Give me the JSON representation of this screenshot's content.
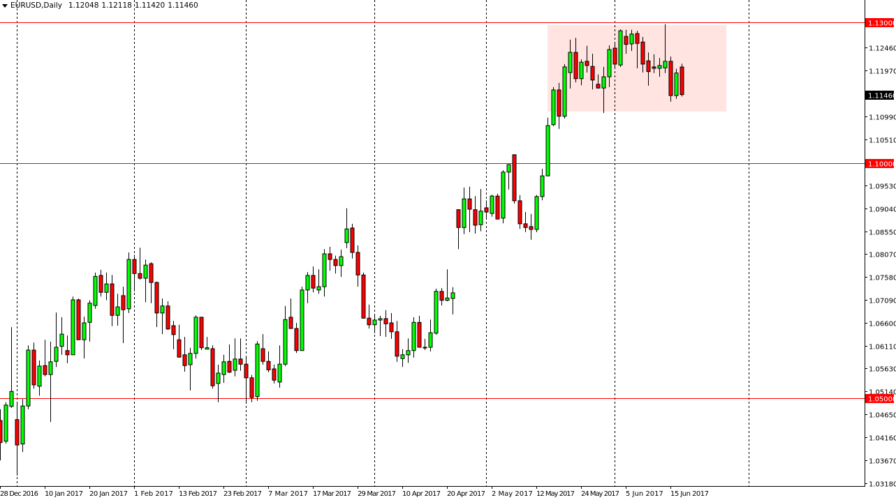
{
  "header": {
    "symbol_timeframe": "EURUSD,Daily",
    "open": "1.12048",
    "high": "1.12118",
    "low": "1.11420",
    "close": "1.11460"
  },
  "colors": {
    "background": "#ffffff",
    "bull_body": "#00ff00",
    "bear_body": "#ff0000",
    "wick": "#000000",
    "level_line": "#ff0000",
    "zone_fill": "#ffe4e1",
    "current_price_label": "#000000"
  },
  "chart_data": {
    "type": "candlestick",
    "title": "EURUSD,Daily",
    "grid": false,
    "ylim": [
      1.03125,
      1.13475
    ],
    "y_ticks": [
      "1.12460",
      "1.11970",
      "1.10990",
      "1.10510",
      "1.09530",
      "1.09040",
      "1.08550",
      "1.08070",
      "1.07580",
      "1.07090",
      "1.06600",
      "1.06110",
      "1.05630",
      "1.05140",
      "1.04650",
      "1.04160",
      "1.03670",
      "1.03180"
    ],
    "x_labels": [
      {
        "bar": 0,
        "label": "28 Dec 2016"
      },
      {
        "bar": 8,
        "label": "10 Jan 2017"
      },
      {
        "bar": 16,
        "label": "20 Jan 2017"
      },
      {
        "bar": 24,
        "label": "1 Feb 2017"
      },
      {
        "bar": 32,
        "label": "13 Feb 2017"
      },
      {
        "bar": 40,
        "label": "23 Feb 2017"
      },
      {
        "bar": 48,
        "label": "7 Mar 2017"
      },
      {
        "bar": 56,
        "label": "17 Mar 2017"
      },
      {
        "bar": 64,
        "label": "29 Mar 2017"
      },
      {
        "bar": 72,
        "label": "10 Apr 2017"
      },
      {
        "bar": 80,
        "label": "20 Apr 2017"
      },
      {
        "bar": 88,
        "label": "2 May 2017"
      },
      {
        "bar": 96,
        "label": "12 May 2017"
      },
      {
        "bar": 104,
        "label": "24 May 2017"
      },
      {
        "bar": 112,
        "label": "5 Jun 2017"
      },
      {
        "bar": 120,
        "label": "15 Jun 2017"
      }
    ],
    "ohlc_fields": [
      "open",
      "high",
      "low",
      "close"
    ],
    "candles": [
      [
        1.0452,
        1.0476,
        1.0367,
        1.0405
      ],
      [
        1.0408,
        1.0491,
        1.0403,
        1.0485
      ],
      [
        1.0482,
        1.0651,
        1.0479,
        1.0514
      ],
      [
        1.0454,
        1.0491,
        1.0335,
        1.04
      ],
      [
        1.0402,
        1.0498,
        1.0385,
        1.0483
      ],
      [
        1.0483,
        1.0612,
        1.0476,
        1.0602
      ],
      [
        1.0602,
        1.0618,
        1.052,
        1.0528
      ],
      [
        1.0525,
        1.058,
        1.0505,
        1.0568
      ],
      [
        1.0569,
        1.0624,
        1.0546,
        1.055
      ],
      [
        1.055,
        1.062,
        1.0449,
        1.0577
      ],
      [
        1.0578,
        1.0682,
        1.0566,
        1.0608
      ],
      [
        1.061,
        1.0672,
        1.0592,
        1.0636
      ],
      [
        1.0601,
        1.0633,
        1.0574,
        1.0592
      ],
      [
        1.0592,
        1.0716,
        1.0592,
        1.0709
      ],
      [
        1.0709,
        1.0712,
        1.0624,
        1.0624
      ],
      [
        1.0624,
        1.0673,
        1.0584,
        1.066
      ],
      [
        1.0661,
        1.0708,
        1.062,
        1.0702
      ],
      [
        1.0697,
        1.0767,
        1.069,
        1.0759
      ],
      [
        1.0761,
        1.0773,
        1.0716,
        1.0725
      ],
      [
        1.0725,
        1.0767,
        1.0708,
        1.0743
      ],
      [
        1.0743,
        1.0762,
        1.0653,
        1.0676
      ],
      [
        1.0676,
        1.0722,
        1.0654,
        1.0694
      ],
      [
        1.0718,
        1.0737,
        1.0617,
        1.0688
      ],
      [
        1.069,
        1.081,
        1.0681,
        1.0795
      ],
      [
        1.0795,
        1.0805,
        1.0727,
        1.0765
      ],
      [
        1.0765,
        1.082,
        1.0752,
        1.0755
      ],
      [
        1.0755,
        1.0795,
        1.0704,
        1.0783
      ],
      [
        1.0786,
        1.0789,
        1.0702,
        1.0746
      ],
      [
        1.0746,
        1.0748,
        1.0651,
        1.0681
      ],
      [
        1.0681,
        1.0712,
        1.0636,
        1.0696
      ],
      [
        1.0696,
        1.0706,
        1.0645,
        1.0647
      ],
      [
        1.0654,
        1.0664,
        1.0604,
        1.0635
      ],
      [
        1.0624,
        1.0656,
        1.0586,
        1.0587
      ],
      [
        1.0592,
        1.063,
        1.0556,
        1.0569
      ],
      [
        1.0571,
        1.0607,
        1.0516,
        1.0595
      ],
      [
        1.0595,
        1.0676,
        1.0584,
        1.0672
      ],
      [
        1.0672,
        1.0673,
        1.0602,
        1.0607
      ],
      [
        1.0604,
        1.063,
        1.0604,
        1.0607
      ],
      [
        1.0605,
        1.0612,
        1.052,
        1.0526
      ],
      [
        1.0531,
        1.0571,
        1.0491,
        1.0553
      ],
      [
        1.055,
        1.0592,
        1.0532,
        1.0577
      ],
      [
        1.0578,
        1.0614,
        1.0553,
        1.0555
      ],
      [
        1.0559,
        1.0627,
        1.0546,
        1.0583
      ],
      [
        1.0583,
        1.0627,
        1.0558,
        1.0572
      ],
      [
        1.0572,
        1.0589,
        1.0488,
        1.0543
      ],
      [
        1.0543,
        1.0549,
        1.0491,
        1.0501
      ],
      [
        1.0503,
        1.0621,
        1.0494,
        1.0615
      ],
      [
        1.0605,
        1.0636,
        1.0571,
        1.0578
      ],
      [
        1.0578,
        1.0599,
        1.0555,
        1.056
      ],
      [
        1.0562,
        1.0571,
        1.0531,
        1.0538
      ],
      [
        1.0534,
        1.0612,
        1.0522,
        1.0572
      ],
      [
        1.0572,
        1.0696,
        1.0568,
        1.0667
      ],
      [
        1.0672,
        1.0712,
        1.0648,
        1.0648
      ],
      [
        1.0648,
        1.066,
        1.0596,
        1.0601
      ],
      [
        1.0601,
        1.0737,
        1.0601,
        1.073
      ],
      [
        1.073,
        1.0768,
        1.0702,
        1.0761
      ],
      [
        1.0761,
        1.078,
        1.0725,
        1.0734
      ],
      [
        1.073,
        1.0774,
        1.0722,
        1.0737
      ],
      [
        1.0737,
        1.0817,
        1.0716,
        1.0807
      ],
      [
        1.0807,
        1.0822,
        1.0771,
        1.0795
      ],
      [
        1.0795,
        1.0803,
        1.0765,
        1.0782
      ],
      [
        1.0782,
        1.0816,
        1.0758,
        1.0801
      ],
      [
        1.0831,
        1.0904,
        1.0819,
        1.086
      ],
      [
        1.0862,
        1.0871,
        1.0797,
        1.081
      ],
      [
        1.081,
        1.0825,
        1.0737,
        1.0762
      ],
      [
        1.0762,
        1.0767,
        1.0669,
        1.067
      ],
      [
        1.067,
        1.0699,
        1.0648,
        1.0656
      ],
      [
        1.0656,
        1.0678,
        1.0638,
        1.0666
      ],
      [
        1.0666,
        1.0675,
        1.0632,
        1.0669
      ],
      [
        1.0669,
        1.0687,
        1.063,
        1.0658
      ],
      [
        1.066,
        1.0681,
        1.0626,
        1.0641
      ],
      [
        1.0641,
        1.0664,
        1.0577,
        1.0589
      ],
      [
        1.0584,
        1.0604,
        1.0566,
        1.0592
      ],
      [
        1.0592,
        1.0627,
        1.0575,
        1.0601
      ],
      [
        1.0601,
        1.0672,
        1.0586,
        1.0661
      ],
      [
        1.0661,
        1.0675,
        1.0607,
        1.0608
      ],
      [
        1.0607,
        1.0626,
        1.0602,
        1.0608
      ],
      [
        1.0608,
        1.0667,
        1.0599,
        1.0639
      ],
      [
        1.0638,
        1.0733,
        1.0635,
        1.0727
      ],
      [
        1.0727,
        1.0734,
        1.0697,
        1.0708
      ],
      [
        1.0708,
        1.0774,
        1.0706,
        1.0713
      ],
      [
        1.0712,
        1.0736,
        1.0678,
        1.0724
      ],
      [
        1.0901,
        1.0902,
        1.0817,
        1.0863
      ],
      [
        1.0863,
        1.0948,
        1.0849,
        1.0924
      ],
      [
        1.0924,
        1.095,
        1.0853,
        1.0902
      ],
      [
        1.0901,
        1.093,
        1.085,
        1.0868
      ],
      [
        1.0869,
        1.0945,
        1.0855,
        1.0898
      ],
      [
        1.0905,
        1.0921,
        1.0881,
        1.0896
      ],
      [
        1.0893,
        1.0933,
        1.0886,
        1.093
      ],
      [
        1.093,
        1.0935,
        1.0881,
        1.0881
      ],
      [
        1.0883,
        1.0985,
        1.0872,
        1.0981
      ],
      [
        1.0981,
        1.0997,
        1.0944,
        1.0997
      ],
      [
        1.1018,
        1.1019,
        1.0914,
        1.092
      ],
      [
        1.092,
        1.0932,
        1.086,
        1.0871
      ],
      [
        1.0871,
        1.0896,
        1.0853,
        1.0863
      ],
      [
        1.0865,
        1.0892,
        1.0837,
        1.0859
      ],
      [
        1.0859,
        1.0932,
        1.0853,
        1.0929
      ],
      [
        1.0929,
        1.0988,
        1.0921,
        1.0973
      ],
      [
        1.0973,
        1.1097,
        1.0972,
        1.108
      ],
      [
        1.1082,
        1.1162,
        1.1079,
        1.1156
      ],
      [
        1.1156,
        1.1171,
        1.1073,
        1.11
      ],
      [
        1.11,
        1.1211,
        1.1095,
        1.1205
      ],
      [
        1.1193,
        1.1263,
        1.1159,
        1.1236
      ],
      [
        1.1236,
        1.1267,
        1.1172,
        1.118
      ],
      [
        1.118,
        1.1221,
        1.1166,
        1.1215
      ],
      [
        1.1217,
        1.125,
        1.1193,
        1.1208
      ],
      [
        1.1206,
        1.1233,
        1.1157,
        1.1177
      ],
      [
        1.1168,
        1.1189,
        1.1159,
        1.116
      ],
      [
        1.116,
        1.1205,
        1.1107,
        1.1184
      ],
      [
        1.1184,
        1.1251,
        1.1162,
        1.1242
      ],
      [
        1.1245,
        1.1257,
        1.1201,
        1.1211
      ],
      [
        1.1209,
        1.1285,
        1.1205,
        1.1282
      ],
      [
        1.127,
        1.1284,
        1.1233,
        1.1253
      ],
      [
        1.1254,
        1.1284,
        1.1239,
        1.1275
      ],
      [
        1.1276,
        1.1282,
        1.1202,
        1.1255
      ],
      [
        1.1258,
        1.1269,
        1.1193,
        1.1211
      ],
      [
        1.1218,
        1.1236,
        1.1165,
        1.1195
      ],
      [
        1.1205,
        1.1232,
        1.1192,
        1.1202
      ],
      [
        1.1202,
        1.1224,
        1.1184,
        1.1208
      ],
      [
        1.1203,
        1.1296,
        1.1192,
        1.1217
      ],
      [
        1.1217,
        1.1227,
        1.1131,
        1.1144
      ],
      [
        1.1144,
        1.1201,
        1.1137,
        1.1192
      ],
      [
        1.12048,
        1.12118,
        1.1142,
        1.1146
      ]
    ],
    "horizontal_levels": [
      {
        "price": 1.13,
        "label": "1.13000"
      },
      {
        "price": 1.1,
        "label": "1.10000"
      },
      {
        "price": 1.05,
        "label": "1.05000"
      }
    ],
    "current_price": {
      "price": 1.1146,
      "label": "1.11460"
    },
    "zone": {
      "start_bar": 98,
      "end_bar": 130,
      "top": 1.1294,
      "bottom": 1.111
    }
  }
}
